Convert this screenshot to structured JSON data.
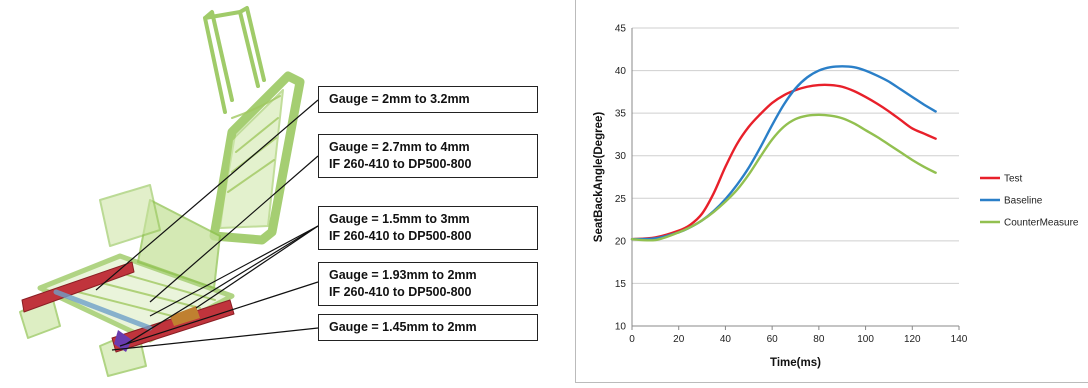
{
  "annotations": [
    {
      "lines": [
        "Gauge = 2mm to 3.2mm"
      ]
    },
    {
      "lines": [
        "Gauge = 2.7mm to 4mm",
        "IF 260-410 to DP500-800"
      ]
    },
    {
      "lines": [
        "Gauge = 1.5mm to 3mm",
        "IF 260-410 to DP500-800"
      ]
    },
    {
      "lines": [
        "Gauge = 1.93mm to 2mm",
        "IF 260-410 to DP500-800"
      ]
    },
    {
      "lines": [
        "Gauge = 1.45mm to 2mm"
      ]
    }
  ],
  "colors": {
    "frame": "#9acd5a",
    "rail": "#c0343c",
    "test": "#e8202a",
    "baseline": "#2a7fc8",
    "countermeasure": "#92c050"
  },
  "chart_data": {
    "type": "line",
    "xlabel": "Time(ms)",
    "ylabel": "SeatBackAngle(Degree)",
    "xlim": [
      0,
      140
    ],
    "ylim": [
      10,
      45
    ],
    "xticks": [
      0,
      20,
      40,
      60,
      80,
      100,
      120,
      140
    ],
    "yticks": [
      10,
      15,
      20,
      25,
      30,
      35,
      40,
      45
    ],
    "grid": "horizontal",
    "legend_position": "right",
    "series": [
      {
        "name": "Test",
        "color": "#e8202a",
        "x": [
          0,
          10,
          20,
          25,
          30,
          35,
          40,
          45,
          50,
          55,
          60,
          65,
          70,
          75,
          80,
          85,
          90,
          95,
          100,
          105,
          110,
          115,
          120,
          125,
          130
        ],
        "y": [
          20.2,
          20.4,
          21.2,
          21.9,
          23.2,
          25.6,
          28.7,
          31.4,
          33.4,
          34.9,
          36.2,
          37.1,
          37.7,
          38.1,
          38.3,
          38.3,
          38.1,
          37.6,
          36.9,
          36.1,
          35.2,
          34.2,
          33.2,
          32.6,
          32.0
        ]
      },
      {
        "name": "Baseline",
        "color": "#2a7fc8",
        "x": [
          0,
          10,
          20,
          25,
          30,
          35,
          40,
          45,
          50,
          55,
          60,
          65,
          70,
          75,
          80,
          85,
          90,
          95,
          100,
          105,
          110,
          115,
          120,
          125,
          130
        ],
        "y": [
          20.2,
          20.3,
          21.0,
          21.6,
          22.4,
          23.5,
          24.9,
          26.6,
          28.6,
          31.0,
          33.6,
          36.0,
          37.9,
          39.2,
          40.0,
          40.4,
          40.5,
          40.4,
          40.0,
          39.4,
          38.7,
          37.8,
          36.9,
          36.0,
          35.2
        ]
      },
      {
        "name": "CounterMeasure",
        "color": "#92c050",
        "x": [
          0,
          10,
          20,
          25,
          30,
          35,
          40,
          45,
          50,
          55,
          60,
          65,
          70,
          75,
          80,
          85,
          90,
          95,
          100,
          105,
          110,
          115,
          120,
          125,
          130
        ],
        "y": [
          20.2,
          20.1,
          21.0,
          21.6,
          22.4,
          23.4,
          24.6,
          26.0,
          27.8,
          29.9,
          31.9,
          33.4,
          34.3,
          34.7,
          34.8,
          34.7,
          34.4,
          33.8,
          33.0,
          32.2,
          31.3,
          30.4,
          29.5,
          28.7,
          28.0
        ]
      }
    ]
  }
}
